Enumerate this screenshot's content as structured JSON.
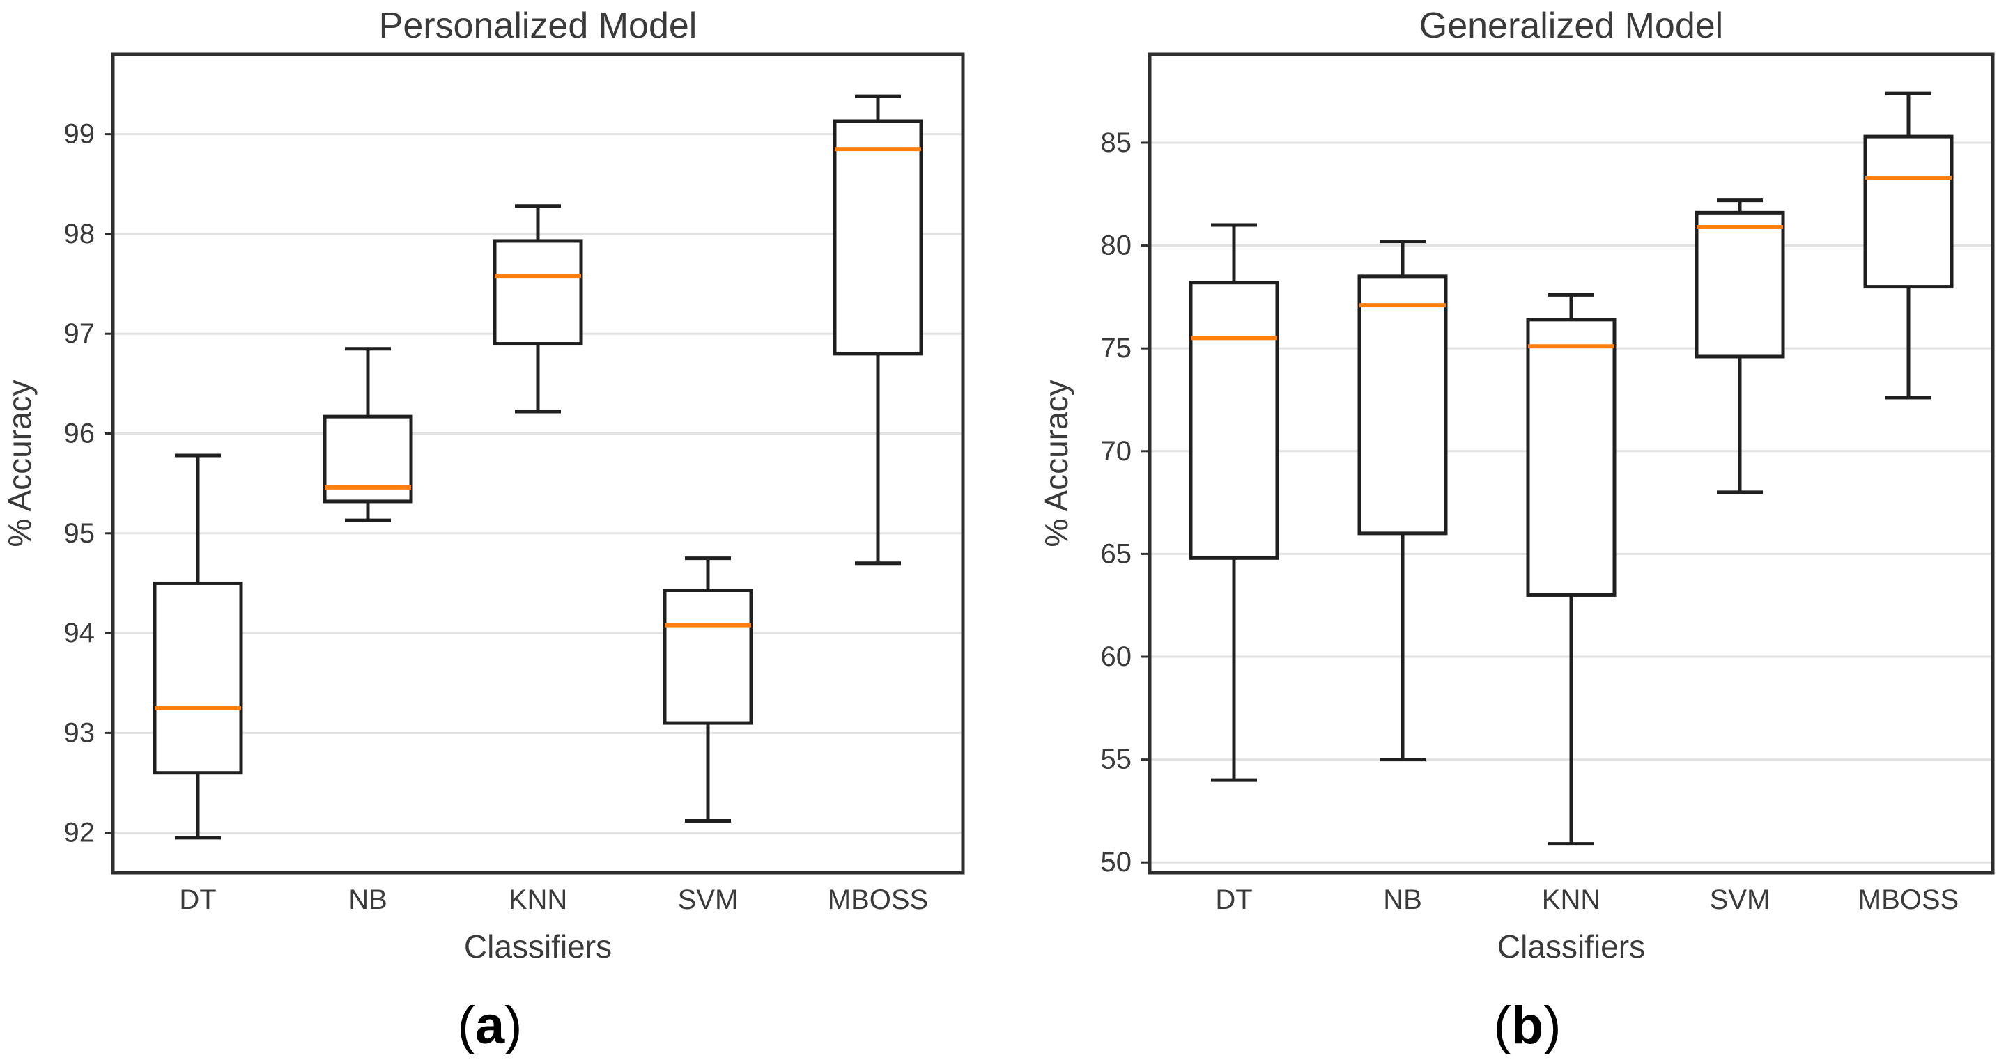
{
  "figure": {
    "background": "#ffffff",
    "text_color": "#3a3a3a",
    "spine_color": "#2e2e2e",
    "grid_color": "#e2e2e2",
    "caption_color": "#000000"
  },
  "chart_data": [
    {
      "type": "boxplot",
      "title": "Personalized Model",
      "xlabel": "Classifiers",
      "ylabel": "% Accuracy",
      "caption": "(a)",
      "categories": [
        "DT",
        "NB",
        "KNN",
        "SVM",
        "MBOSS"
      ],
      "ylim": [
        91.6,
        99.8
      ],
      "yticks": [
        92,
        93,
        94,
        95,
        96,
        97,
        98,
        99
      ],
      "grid": true,
      "legend": "none",
      "colors": {
        "median": "#ff7f0e",
        "box": "#1f1f1f"
      },
      "series": [
        {
          "name": "DT",
          "whisker_low": 91.95,
          "q1": 92.6,
          "median": 93.25,
          "q3": 94.5,
          "whisker_high": 95.78
        },
        {
          "name": "NB",
          "whisker_low": 95.13,
          "q1": 95.32,
          "median": 95.46,
          "q3": 96.17,
          "whisker_high": 96.85
        },
        {
          "name": "KNN",
          "whisker_low": 96.22,
          "q1": 96.9,
          "median": 97.58,
          "q3": 97.93,
          "whisker_high": 98.28
        },
        {
          "name": "SVM",
          "whisker_low": 92.12,
          "q1": 93.1,
          "median": 94.08,
          "q3": 94.43,
          "whisker_high": 94.75
        },
        {
          "name": "MBOSS",
          "whisker_low": 94.7,
          "q1": 96.8,
          "median": 98.85,
          "q3": 99.13,
          "whisker_high": 99.38
        }
      ]
    },
    {
      "type": "boxplot",
      "title": "Generalized Model",
      "xlabel": "Classifiers",
      "ylabel": "% Accuracy",
      "caption": "(b)",
      "categories": [
        "DT",
        "NB",
        "KNN",
        "SVM",
        "MBOSS"
      ],
      "ylim": [
        49.5,
        89.3
      ],
      "yticks": [
        50,
        55,
        60,
        65,
        70,
        75,
        80,
        85
      ],
      "grid": true,
      "legend": "none",
      "colors": {
        "median": "#ff7f0e",
        "box": "#1f1f1f"
      },
      "series": [
        {
          "name": "DT",
          "whisker_low": 54.0,
          "q1": 64.8,
          "median": 75.5,
          "q3": 78.2,
          "whisker_high": 81.0
        },
        {
          "name": "NB",
          "whisker_low": 55.0,
          "q1": 66.0,
          "median": 77.1,
          "q3": 78.5,
          "whisker_high": 80.2
        },
        {
          "name": "KNN",
          "whisker_low": 50.9,
          "q1": 63.0,
          "median": 75.1,
          "q3": 76.4,
          "whisker_high": 77.6
        },
        {
          "name": "SVM",
          "whisker_low": 68.0,
          "q1": 74.6,
          "median": 80.9,
          "q3": 81.6,
          "whisker_high": 82.2
        },
        {
          "name": "MBOSS",
          "whisker_low": 72.6,
          "q1": 78.0,
          "median": 83.3,
          "q3": 85.3,
          "whisker_high": 87.4
        }
      ]
    }
  ]
}
